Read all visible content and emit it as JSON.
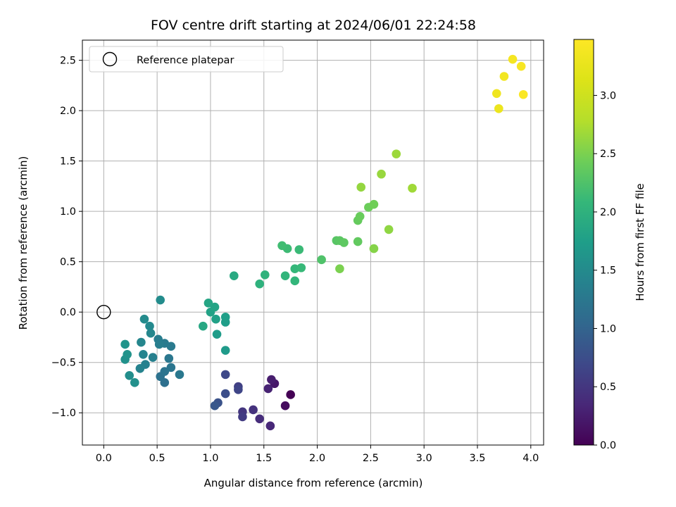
{
  "chart_data": {
    "type": "scatter",
    "title": "FOV centre drift starting at 2024/06/01 22:24:58",
    "xlabel": "Angular distance from reference (arcmin)",
    "ylabel": "Rotation from reference (arcmin)",
    "xlim": [
      -0.2,
      4.12
    ],
    "ylim": [
      -1.32,
      2.7
    ],
    "xticks": [
      0.0,
      0.5,
      1.0,
      1.5,
      2.0,
      2.5,
      3.0,
      3.5,
      4.0
    ],
    "xtick_labels": [
      "0.0",
      "0.5",
      "1.0",
      "1.5",
      "2.0",
      "2.5",
      "3.0",
      "3.5",
      "4.0"
    ],
    "yticks": [
      -1.0,
      -0.5,
      0.0,
      0.5,
      1.0,
      1.5,
      2.0,
      2.5
    ],
    "ytick_labels": [
      "−1.0",
      "−0.5",
      "0.0",
      "0.5",
      "1.0",
      "1.5",
      "2.0",
      "2.5"
    ],
    "grid": true,
    "legend": {
      "placement": "top-left",
      "label": "Reference platepar"
    },
    "reference_point": {
      "x": 0.0,
      "y": 0.0
    },
    "colorbar": {
      "label": "Hours from first FF file",
      "colormap": "viridis",
      "range": [
        0.0,
        3.48
      ],
      "ticks": [
        0.0,
        0.5,
        1.0,
        1.5,
        2.0,
        2.5,
        3.0
      ],
      "tick_labels": [
        "0.0",
        "0.5",
        "1.0",
        "1.5",
        "2.0",
        "2.5",
        "3.0"
      ]
    },
    "points": [
      {
        "x": 1.75,
        "y": -0.82,
        "t": 0.0
      },
      {
        "x": 1.7,
        "y": -0.93,
        "t": 0.1
      },
      {
        "x": 1.6,
        "y": -0.71,
        "t": 0.2
      },
      {
        "x": 1.57,
        "y": -0.67,
        "t": 0.25
      },
      {
        "x": 1.54,
        "y": -0.76,
        "t": 0.3
      },
      {
        "x": 1.56,
        "y": -1.13,
        "t": 0.35
      },
      {
        "x": 1.46,
        "y": -1.06,
        "t": 0.4
      },
      {
        "x": 1.4,
        "y": -0.97,
        "t": 0.45
      },
      {
        "x": 1.3,
        "y": -0.99,
        "t": 0.5
      },
      {
        "x": 1.3,
        "y": -1.04,
        "t": 0.55
      },
      {
        "x": 1.26,
        "y": -0.74,
        "t": 0.6
      },
      {
        "x": 1.26,
        "y": -0.77,
        "t": 0.65
      },
      {
        "x": 1.14,
        "y": -0.62,
        "t": 0.7
      },
      {
        "x": 1.14,
        "y": -0.81,
        "t": 0.75
      },
      {
        "x": 1.07,
        "y": -0.9,
        "t": 0.8
      },
      {
        "x": 1.04,
        "y": -0.93,
        "t": 0.85
      },
      {
        "x": 0.57,
        "y": -0.7,
        "t": 1.15
      },
      {
        "x": 0.53,
        "y": -0.64,
        "t": 1.18
      },
      {
        "x": 0.57,
        "y": -0.59,
        "t": 1.2
      },
      {
        "x": 0.63,
        "y": -0.55,
        "t": 1.22
      },
      {
        "x": 0.61,
        "y": -0.46,
        "t": 1.24
      },
      {
        "x": 0.71,
        "y": -0.62,
        "t": 1.26
      },
      {
        "x": 0.63,
        "y": -0.34,
        "t": 1.28
      },
      {
        "x": 0.57,
        "y": -0.31,
        "t": 1.3
      },
      {
        "x": 0.51,
        "y": -0.27,
        "t": 1.32
      },
      {
        "x": 0.52,
        "y": -0.32,
        "t": 1.34
      },
      {
        "x": 0.46,
        "y": -0.45,
        "t": 1.36
      },
      {
        "x": 0.39,
        "y": -0.52,
        "t": 1.38
      },
      {
        "x": 0.34,
        "y": -0.56,
        "t": 1.4
      },
      {
        "x": 0.37,
        "y": -0.42,
        "t": 1.42
      },
      {
        "x": 0.35,
        "y": -0.3,
        "t": 1.44
      },
      {
        "x": 0.44,
        "y": -0.21,
        "t": 1.46
      },
      {
        "x": 0.43,
        "y": -0.14,
        "t": 1.48
      },
      {
        "x": 0.38,
        "y": -0.07,
        "t": 1.5
      },
      {
        "x": 0.53,
        "y": 0.12,
        "t": 1.52
      },
      {
        "x": 0.24,
        "y": -0.63,
        "t": 1.54
      },
      {
        "x": 0.29,
        "y": -0.7,
        "t": 1.56
      },
      {
        "x": 0.2,
        "y": -0.47,
        "t": 1.58
      },
      {
        "x": 0.22,
        "y": -0.42,
        "t": 1.6
      },
      {
        "x": 0.2,
        "y": -0.32,
        "t": 1.62
      },
      {
        "x": 1.14,
        "y": -0.38,
        "t": 1.7
      },
      {
        "x": 1.06,
        "y": -0.22,
        "t": 1.72
      },
      {
        "x": 1.14,
        "y": -0.1,
        "t": 1.74
      },
      {
        "x": 1.14,
        "y": -0.05,
        "t": 1.76
      },
      {
        "x": 1.05,
        "y": -0.07,
        "t": 1.78
      },
      {
        "x": 1.0,
        "y": 0.0,
        "t": 1.8
      },
      {
        "x": 1.04,
        "y": 0.05,
        "t": 1.82
      },
      {
        "x": 0.98,
        "y": 0.09,
        "t": 1.84
      },
      {
        "x": 0.93,
        "y": -0.14,
        "t": 1.86
      },
      {
        "x": 1.22,
        "y": 0.36,
        "t": 1.9
      },
      {
        "x": 1.46,
        "y": 0.28,
        "t": 2.0
      },
      {
        "x": 1.51,
        "y": 0.37,
        "t": 2.02
      },
      {
        "x": 1.7,
        "y": 0.36,
        "t": 2.04
      },
      {
        "x": 1.79,
        "y": 0.31,
        "t": 2.06
      },
      {
        "x": 1.79,
        "y": 0.43,
        "t": 2.08
      },
      {
        "x": 1.85,
        "y": 0.44,
        "t": 2.1
      },
      {
        "x": 1.83,
        "y": 0.62,
        "t": 2.12
      },
      {
        "x": 1.72,
        "y": 0.63,
        "t": 2.14
      },
      {
        "x": 1.67,
        "y": 0.66,
        "t": 2.16
      },
      {
        "x": 2.04,
        "y": 0.52,
        "t": 2.25
      },
      {
        "x": 2.18,
        "y": 0.71,
        "t": 2.3
      },
      {
        "x": 2.21,
        "y": 0.71,
        "t": 2.32
      },
      {
        "x": 2.25,
        "y": 0.69,
        "t": 2.34
      },
      {
        "x": 2.38,
        "y": 0.7,
        "t": 2.36
      },
      {
        "x": 2.38,
        "y": 0.91,
        "t": 2.38
      },
      {
        "x": 2.4,
        "y": 0.95,
        "t": 2.4
      },
      {
        "x": 2.48,
        "y": 1.04,
        "t": 2.42
      },
      {
        "x": 2.53,
        "y": 1.07,
        "t": 2.44
      },
      {
        "x": 2.21,
        "y": 0.43,
        "t": 2.5
      },
      {
        "x": 2.53,
        "y": 0.63,
        "t": 2.55
      },
      {
        "x": 2.67,
        "y": 0.82,
        "t": 2.6
      },
      {
        "x": 2.41,
        "y": 1.24,
        "t": 2.62
      },
      {
        "x": 2.6,
        "y": 1.37,
        "t": 2.64
      },
      {
        "x": 2.74,
        "y": 1.57,
        "t": 2.66
      },
      {
        "x": 2.89,
        "y": 1.23,
        "t": 2.68
      },
      {
        "x": 3.7,
        "y": 2.02,
        "t": 3.3
      },
      {
        "x": 3.68,
        "y": 2.17,
        "t": 3.33
      },
      {
        "x": 3.75,
        "y": 2.34,
        "t": 3.36
      },
      {
        "x": 3.83,
        "y": 2.51,
        "t": 3.39
      },
      {
        "x": 3.91,
        "y": 2.44,
        "t": 3.42
      },
      {
        "x": 3.93,
        "y": 2.16,
        "t": 3.45
      }
    ]
  }
}
